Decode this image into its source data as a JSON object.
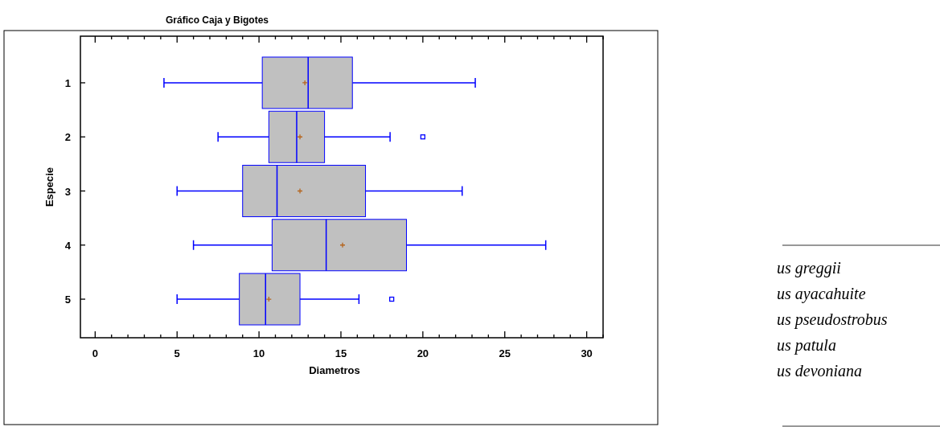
{
  "chart_data": {
    "type": "box",
    "title": "Gráfico Caja y Bigotes",
    "xlabel": "Diametros",
    "ylabel": "Especie",
    "orientation": "horizontal",
    "categories": [
      "1",
      "2",
      "3",
      "4",
      "5"
    ],
    "series": [
      {
        "color": "#0000ff",
        "boxes": [
          {
            "low": 4.2,
            "q1": 10.2,
            "median": 13.0,
            "q3": 15.7,
            "high": 23.2,
            "mean": 12.8
          },
          {
            "low": 7.5,
            "q1": 10.6,
            "median": 12.3,
            "q3": 14.0,
            "high": 18.0,
            "mean": 12.5,
            "outliers": [
              20.0
            ]
          },
          {
            "low": 5.0,
            "q1": 9.0,
            "median": 11.1,
            "q3": 16.5,
            "high": 22.4,
            "mean": 12.5
          },
          {
            "low": 6.0,
            "q1": 10.8,
            "median": 14.1,
            "q3": 19.0,
            "high": 27.5,
            "mean": 15.1
          },
          {
            "low": 5.0,
            "q1": 8.8,
            "median": 10.4,
            "q3": 12.5,
            "high": 16.1,
            "mean": 10.6,
            "outliers": [
              18.1
            ]
          }
        ]
      }
    ],
    "xlim": [
      -0.9,
      31
    ],
    "xticks": [
      0,
      5,
      10,
      15,
      20,
      25,
      30
    ],
    "annotations": [
      "us greggii",
      "us ayacahuite",
      "us pseudostrobus",
      "us patula",
      "us devoniana"
    ]
  }
}
